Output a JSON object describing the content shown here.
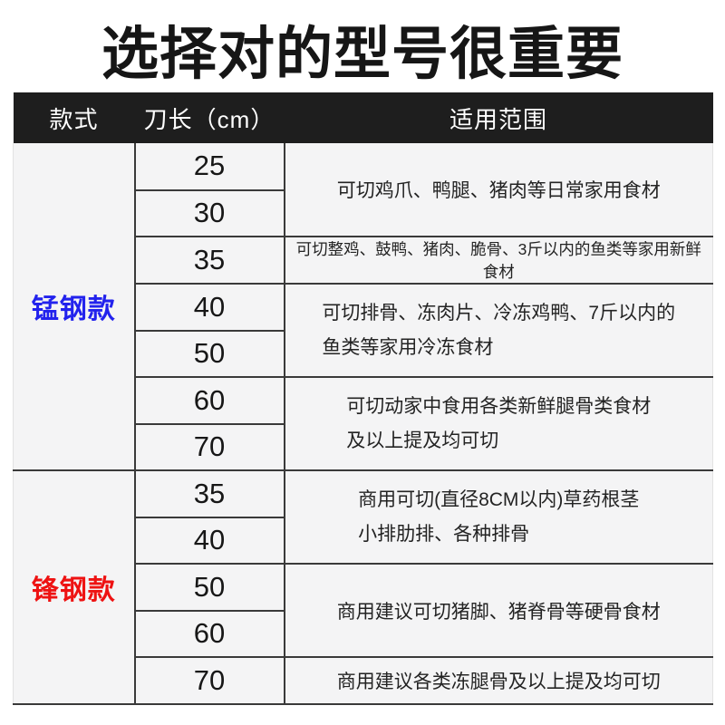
{
  "title": "选择对的型号很重要",
  "colors": {
    "manganese_blue": "#2222ed",
    "sharp_red": "#ee1212",
    "header_bg": "#1e1e1e",
    "body_bg": "#f4f4f5"
  },
  "table": {
    "headers": {
      "style": "款式",
      "length": "刀长（cm）",
      "usage": "适用范围"
    },
    "sections": [
      {
        "style_name": "锰钢款",
        "color": "#2222ed",
        "groups": [
          {
            "lengths": [
              "25",
              "30"
            ],
            "usage": [
              "可切鸡爪、鸭腿、猪肉等日常家用食材"
            ],
            "small": false
          },
          {
            "lengths": [
              "35"
            ],
            "usage": [
              "可切整鸡、鼓鸭、猪肉、脆骨、3斤以内的鱼类等家用新鲜食材"
            ],
            "small": true
          },
          {
            "lengths": [
              "40",
              "50"
            ],
            "usage": [
              "可切排骨、冻肉片、冷冻鸡鸭、7斤以内的",
              "鱼类等家用冷冻食材"
            ],
            "small": false
          },
          {
            "lengths": [
              "60",
              "70"
            ],
            "usage": [
              "可切动家中食用各类新鲜腿骨类食材",
              "及以上提及均可切"
            ],
            "small": false
          }
        ]
      },
      {
        "style_name": "锋钢款",
        "color": "#ee1212",
        "groups": [
          {
            "lengths": [
              "35",
              "40"
            ],
            "usage": [
              "商用可切(直径8CM以内)草药根茎",
              "小排肋排、各种排骨"
            ],
            "small": false
          },
          {
            "lengths": [
              "50",
              "60"
            ],
            "usage": [
              "商用建议可切猪脚、猪脊骨等硬骨食材"
            ],
            "small": false
          },
          {
            "lengths": [
              "70"
            ],
            "usage": [
              "商用建议各类冻腿骨及以上提及均可切"
            ],
            "small": false
          }
        ]
      }
    ]
  }
}
